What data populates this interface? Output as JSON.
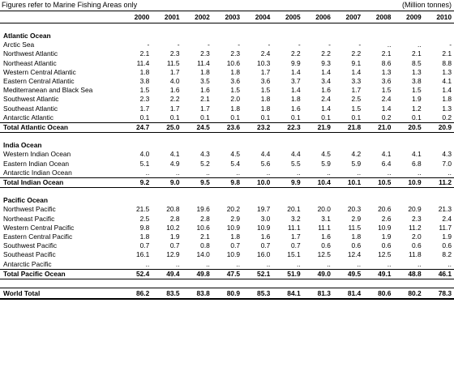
{
  "caption": {
    "left": "Figures refer to Marine Fishing Areas only",
    "right": "(Million tonnes)"
  },
  "years": [
    "2000",
    "2001",
    "2002",
    "2003",
    "2004",
    "2005",
    "2006",
    "2007",
    "2008",
    "2009",
    "2010"
  ],
  "sections": [
    {
      "title": "Atlantic Ocean",
      "rows": [
        {
          "name": "Arctic Sea",
          "values": [
            "-",
            "-",
            "-",
            "-",
            "-",
            "-",
            "-",
            "-",
            "..",
            "..",
            "-"
          ]
        },
        {
          "name": "Northwest Atlantic",
          "values": [
            "2.1",
            "2.3",
            "2.3",
            "2.3",
            "2.4",
            "2.2",
            "2.2",
            "2.2",
            "2.1",
            "2.1",
            "2.1"
          ]
        },
        {
          "name": "Northeast Atlantic",
          "values": [
            "11.4",
            "11.5",
            "11.4",
            "10.6",
            "10.3",
            "9.9",
            "9.3",
            "9.1",
            "8.6",
            "8.5",
            "8.8"
          ]
        },
        {
          "name": "Western Central Atlantic",
          "values": [
            "1.8",
            "1.7",
            "1.8",
            "1.8",
            "1.7",
            "1.4",
            "1.4",
            "1.4",
            "1.3",
            "1.3",
            "1.3"
          ]
        },
        {
          "name": "Eastern Central Atlantic",
          "values": [
            "3.8",
            "4.0",
            "3.5",
            "3.6",
            "3.6",
            "3.7",
            "3.4",
            "3.3",
            "3.6",
            "3.8",
            "4.1"
          ]
        },
        {
          "name": "Mediterranean and Black Sea",
          "values": [
            "1.5",
            "1.6",
            "1.6",
            "1.5",
            "1.5",
            "1.4",
            "1.6",
            "1.7",
            "1.5",
            "1.5",
            "1.4"
          ]
        },
        {
          "name": "Southwest Atlantic",
          "values": [
            "2.3",
            "2.2",
            "2.1",
            "2.0",
            "1.8",
            "1.8",
            "2.4",
            "2.5",
            "2.4",
            "1.9",
            "1.8"
          ]
        },
        {
          "name": "Southeast Atlantic",
          "values": [
            "1.7",
            "1.7",
            "1.7",
            "1.8",
            "1.8",
            "1.6",
            "1.4",
            "1.5",
            "1.4",
            "1.2",
            "1.3"
          ]
        },
        {
          "name": "Antarctic Atlantic",
          "values": [
            "0.1",
            "0.1",
            "0.1",
            "0.1",
            "0.1",
            "0.1",
            "0.1",
            "0.1",
            "0.2",
            "0.1",
            "0.2"
          ]
        }
      ],
      "total": {
        "name": "Total Atlantic Ocean",
        "values": [
          "24.7",
          "25.0",
          "24.5",
          "23.6",
          "23.2",
          "22.3",
          "21.9",
          "21.8",
          "21.0",
          "20.5",
          "20.9"
        ]
      }
    },
    {
      "title": "India Ocean",
      "rows": [
        {
          "name": "Western Indian Ocean",
          "values": [
            "4.0",
            "4.1",
            "4.3",
            "4.5",
            "4.4",
            "4.4",
            "4.5",
            "4.2",
            "4.1",
            "4.1",
            "4.3"
          ]
        },
        {
          "name": "Eastern Indian Ocean",
          "values": [
            "5.1",
            "4.9",
            "5.2",
            "5.4",
            "5.6",
            "5.5",
            "5.9",
            "5.9",
            "6.4",
            "6.8",
            "7.0"
          ]
        },
        {
          "name": "Antarctic Indian Ocean",
          "values": [
            "..",
            "..",
            "..",
            "..",
            "..",
            "..",
            "..",
            "..",
            "..",
            "..",
            ".."
          ]
        }
      ],
      "total": {
        "name": "Total Indian Ocean",
        "values": [
          "9.2",
          "9.0",
          "9.5",
          "9.8",
          "10.0",
          "9.9",
          "10.4",
          "10.1",
          "10.5",
          "10.9",
          "11.2"
        ]
      }
    },
    {
      "title": "Pacific Ocean",
      "rows": [
        {
          "name": "Northwest Pacific",
          "values": [
            "21.5",
            "20.8",
            "19.6",
            "20.2",
            "19.7",
            "20.1",
            "20.0",
            "20.3",
            "20.6",
            "20.9",
            "21.3"
          ]
        },
        {
          "name": "Northeast Pacific",
          "values": [
            "2.5",
            "2.8",
            "2.8",
            "2.9",
            "3.0",
            "3.2",
            "3.1",
            "2.9",
            "2.6",
            "2.3",
            "2.4"
          ]
        },
        {
          "name": "Western Central Pacific",
          "values": [
            "9.8",
            "10.2",
            "10.6",
            "10.9",
            "10.9",
            "11.1",
            "11.1",
            "11.5",
            "10.9",
            "11.2",
            "11.7"
          ]
        },
        {
          "name": "Eastern Central Pacific",
          "values": [
            "1.8",
            "1.9",
            "2.1",
            "1.8",
            "1.6",
            "1.7",
            "1.6",
            "1.8",
            "1.9",
            "2.0",
            "1.9"
          ]
        },
        {
          "name": "Southwest Pacific",
          "values": [
            "0.7",
            "0.7",
            "0.8",
            "0.7",
            "0.7",
            "0.7",
            "0.6",
            "0.6",
            "0.6",
            "0.6",
            "0.6"
          ]
        },
        {
          "name": "Southeast Pacific",
          "values": [
            "16.1",
            "12.9",
            "14.0",
            "10.9",
            "16.0",
            "15.1",
            "12.5",
            "12.4",
            "12.5",
            "11.8",
            "8.2"
          ]
        },
        {
          "name": "Antarctic Pacific",
          "values": [
            "..",
            "..",
            "..",
            "..",
            "..",
            "..",
            "..",
            "..",
            "..",
            "..",
            ".."
          ]
        }
      ],
      "total": {
        "name": "Total Pacific Ocean",
        "values": [
          "52.4",
          "49.4",
          "49.8",
          "47.5",
          "52.1",
          "51.9",
          "49.0",
          "49.5",
          "49.1",
          "48.8",
          "46.1"
        ]
      }
    }
  ],
  "world_total": {
    "name": "World Total",
    "values": [
      "86.2",
      "83.5",
      "83.8",
      "80.9",
      "85.3",
      "84.1",
      "81.3",
      "81.4",
      "80.6",
      "80.2",
      "78.3"
    ]
  }
}
